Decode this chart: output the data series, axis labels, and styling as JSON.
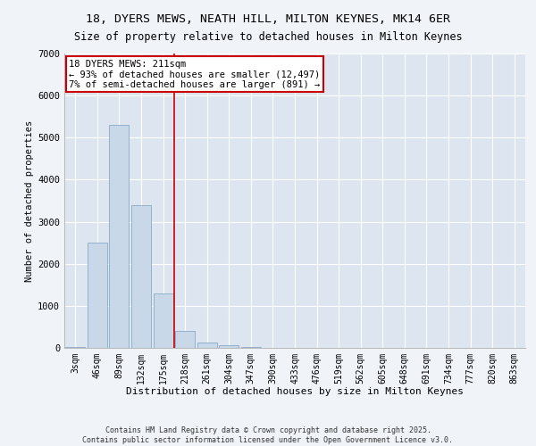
{
  "title": "18, DYERS MEWS, NEATH HILL, MILTON KEYNES, MK14 6ER",
  "subtitle": "Size of property relative to detached houses in Milton Keynes",
  "xlabel": "Distribution of detached houses by size in Milton Keynes",
  "ylabel": "Number of detached properties",
  "bar_color": "#c8d8e8",
  "bar_edge_color": "#8aaac8",
  "categories": [
    "3sqm",
    "46sqm",
    "89sqm",
    "132sqm",
    "175sqm",
    "218sqm",
    "261sqm",
    "304sqm",
    "347sqm",
    "390sqm",
    "433sqm",
    "476sqm",
    "519sqm",
    "562sqm",
    "605sqm",
    "648sqm",
    "691sqm",
    "734sqm",
    "777sqm",
    "820sqm",
    "863sqm"
  ],
  "values": [
    30,
    2500,
    5300,
    3400,
    1300,
    400,
    130,
    60,
    20,
    5,
    2,
    1,
    0,
    0,
    0,
    0,
    0,
    0,
    0,
    0,
    0
  ],
  "vline_x": 4.5,
  "vline_color": "#cc0000",
  "annotation_text": "18 DYERS MEWS: 211sqm\n← 93% of detached houses are smaller (12,497)\n7% of semi-detached houses are larger (891) →",
  "annotation_box_color": "#cc0000",
  "annotation_text_color": "#000000",
  "annotation_bg": "#ffffff",
  "footer_line1": "Contains HM Land Registry data © Crown copyright and database right 2025.",
  "footer_line2": "Contains public sector information licensed under the Open Government Licence v3.0.",
  "ylim": [
    0,
    7000
  ],
  "background_color": "#f0f4f8",
  "plot_bg_color": "#dde6f0",
  "grid_color": "#ffffff",
  "title_fontsize": 9.5,
  "subtitle_fontsize": 8.5
}
